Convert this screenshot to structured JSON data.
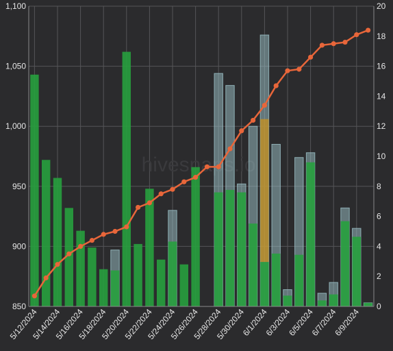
{
  "chart_data": {
    "type": "bar",
    "watermark": "hivesnaps.io",
    "x": [
      "5/12/2024",
      "5/13/2024",
      "5/14/2024",
      "5/15/2024",
      "5/16/2024",
      "5/17/2024",
      "5/18/2024",
      "5/19/2024",
      "5/20/2024",
      "5/21/2024",
      "5/22/2024",
      "5/23/2024",
      "5/24/2024",
      "5/25/2024",
      "5/26/2024",
      "5/27/2024",
      "5/28/2024",
      "5/29/2024",
      "5/30/2024",
      "5/31/2024",
      "6/1/2024",
      "6/2/2024",
      "6/3/2024",
      "6/4/2024",
      "6/5/2024",
      "6/6/2024",
      "6/7/2024",
      "6/8/2024",
      "6/9/2024",
      "6/10/2024"
    ],
    "x_tick_labels": [
      "5/12/2024",
      "5/14/2024",
      "5/16/2024",
      "5/18/2024",
      "5/20/2024",
      "5/22/2024",
      "5/24/2024",
      "5/26/2024",
      "5/28/2024",
      "5/30/2024",
      "6/1/2024",
      "6/3/2024",
      "6/5/2024",
      "6/7/2024",
      "6/9/2024"
    ],
    "y_left": {
      "range": [
        850,
        1100
      ],
      "ticks": [
        850,
        900,
        950,
        1000,
        1050,
        1100
      ]
    },
    "y_right": {
      "range": [
        0,
        20
      ],
      "ticks": [
        0,
        2,
        4,
        6,
        8,
        10,
        12,
        14,
        16,
        18,
        20
      ]
    },
    "series": [
      {
        "kind": "bar",
        "axis": "left",
        "color": "#27a03e",
        "values": [
          1043,
          972,
          957,
          932,
          913,
          899,
          881,
          880,
          1062,
          902,
          948,
          889,
          904,
          885,
          966,
          null,
          945,
          947,
          945,
          919,
          887,
          894,
          859,
          893,
          970,
          855,
          860,
          921,
          908,
          853
        ]
      },
      {
        "kind": "bar",
        "axis": "left",
        "color": "#9ec3c9",
        "values": [
          null,
          null,
          null,
          null,
          null,
          null,
          null,
          897,
          null,
          null,
          null,
          null,
          930,
          null,
          null,
          null,
          1044,
          1034,
          952,
          1000,
          1076,
          985,
          864,
          974,
          978,
          861,
          870,
          932,
          915,
          853
        ]
      },
      {
        "kind": "line",
        "axis": "right",
        "color": "#e8663a",
        "values": [
          0.7,
          1.9,
          2.8,
          3.5,
          4.0,
          4.4,
          4.8,
          5.0,
          5.3,
          6.6,
          6.9,
          7.5,
          7.8,
          8.3,
          8.6,
          9.3,
          9.3,
          10.5,
          11.7,
          12.4,
          13.4,
          14.7,
          15.7,
          15.8,
          16.6,
          17.4,
          17.5,
          17.6,
          18.1,
          18.4
        ]
      }
    ],
    "highlight": {
      "index": 20,
      "color": "#c8921e",
      "range": [
        887,
        1006
      ]
    }
  },
  "colors": {
    "background": "#2b2b2d",
    "grid": "#555558",
    "text": "#e6e6e6"
  }
}
